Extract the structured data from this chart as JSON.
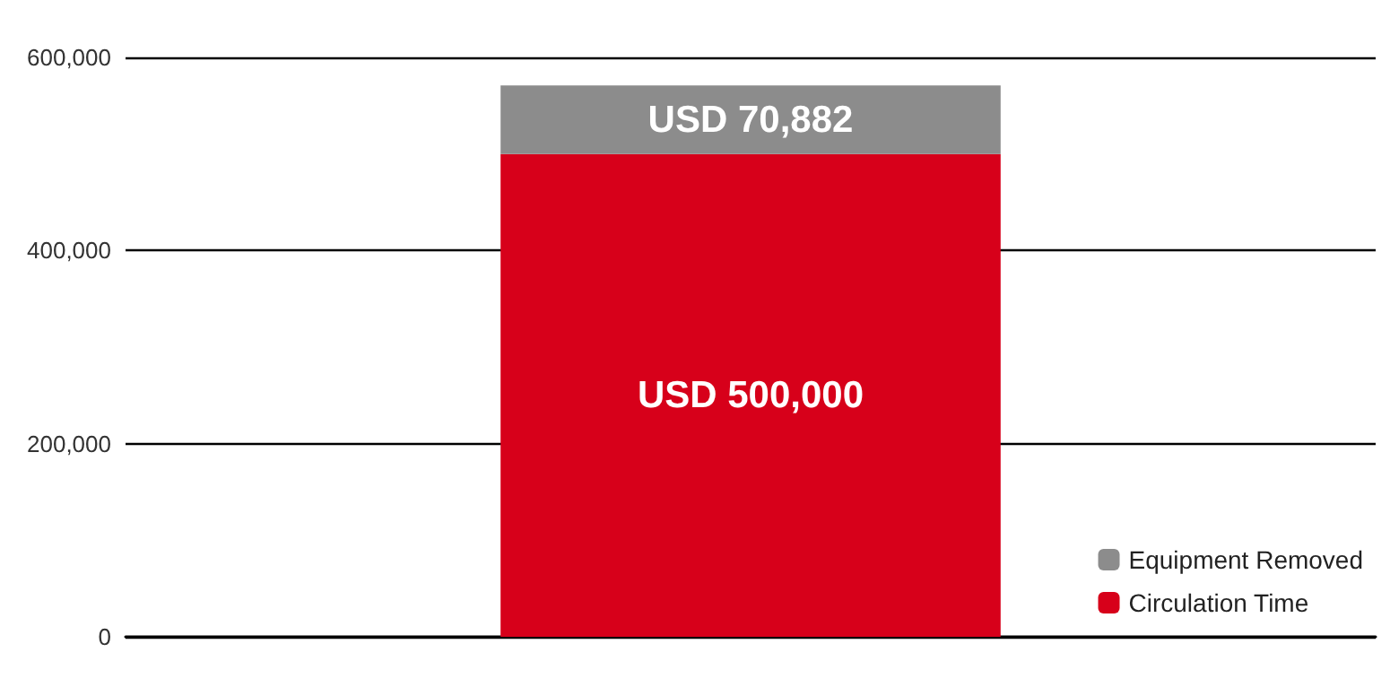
{
  "chart_data": {
    "type": "bar",
    "stacked": true,
    "categories": [
      null
    ],
    "series": [
      {
        "name": "Circulation Time",
        "color": "#d7001a",
        "values": [
          500000
        ],
        "value_labels": [
          "USD 500,000"
        ]
      },
      {
        "name": "Equipment Removed",
        "color": "#8c8c8c",
        "values": [
          70882
        ],
        "value_labels": [
          "USD 70,882"
        ]
      }
    ],
    "ylim": [
      0,
      600000
    ],
    "yticks": [
      {
        "value": 0,
        "label": "0"
      },
      {
        "value": 200000,
        "label": "200,000"
      },
      {
        "value": 400000,
        "label": "400,000"
      },
      {
        "value": 600000,
        "label": "600,000"
      }
    ],
    "grid": "y",
    "legend": "bottom right"
  }
}
